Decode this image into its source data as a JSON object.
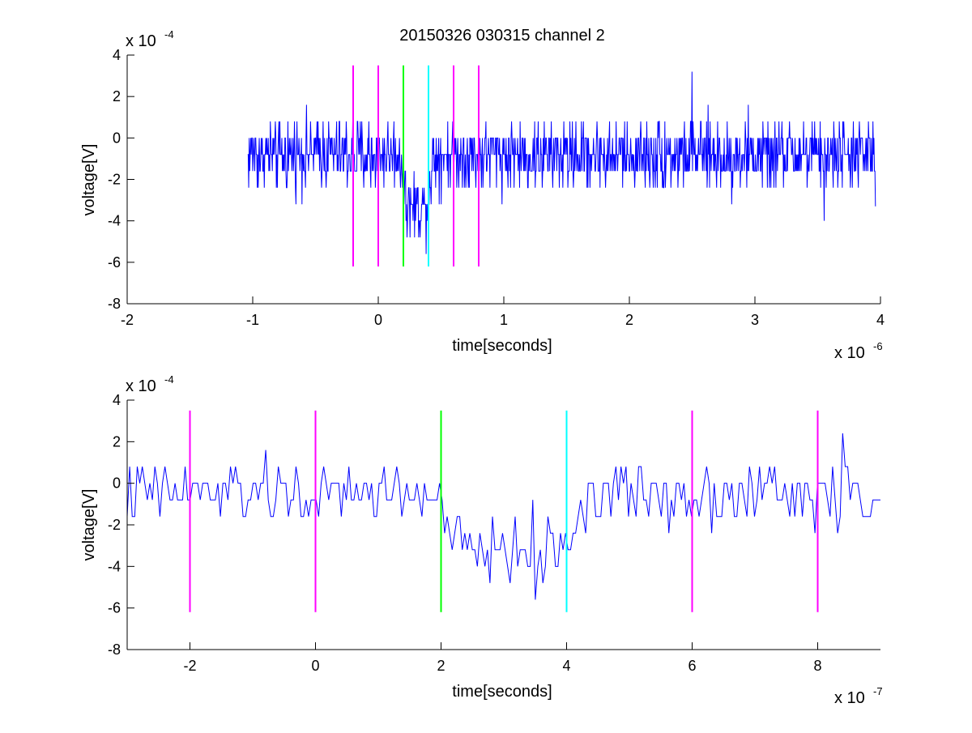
{
  "chart_data": [
    {
      "type": "line",
      "title": "20150326 030315 channel 2",
      "xlabel": "time[seconds]",
      "ylabel": "voltage[V]",
      "xlim": [
        -2e-06,
        4e-06
      ],
      "ylim": [
        -0.0008,
        0.0004
      ],
      "x_ticks": [
        -2e-06,
        -1e-06,
        0,
        1e-06,
        2e-06,
        3e-06,
        4e-06
      ],
      "x_tick_labels": [
        "-2",
        "-1",
        "0",
        "1",
        "2",
        "3",
        "4"
      ],
      "y_ticks": [
        -0.0008,
        -0.0006,
        -0.0004,
        -0.0002,
        0,
        0.0002,
        0.0004
      ],
      "y_tick_labels": [
        "-8",
        "-6",
        "-4",
        "-2",
        "0",
        "2",
        "4"
      ],
      "x_multiplier": {
        "base": "x 10",
        "exponent": "-6"
      },
      "y_multiplier": {
        "base": "x 10",
        "exponent": "-4"
      },
      "grid": false,
      "series": [
        {
          "color": "#0000ff",
          "x_start": -1.04e-06,
          "x_end": 3.96e-06,
          "n_points": 1250,
          "baseline": -8e-05,
          "noise_amplitude": 0.00012,
          "quantization_step": 8e-05,
          "dip": {
            "x_start": 1.8e-07,
            "x_end": 4.4e-07,
            "level": -0.00033
          },
          "peaks": [
            {
              "x": 2.5e-06,
              "y": 0.00032
            },
            {
              "x": 3.55e-06,
              "y": -0.0004
            },
            {
              "x": 3.96e-06,
              "y": -0.00033
            }
          ]
        }
      ],
      "vertical_markers": [
        {
          "x": -2e-07,
          "color": "#ff00ff",
          "y_range": [
            -0.00062,
            0.00035
          ]
        },
        {
          "x": 0,
          "color": "#ff00ff",
          "y_range": [
            -0.00062,
            0.00035
          ]
        },
        {
          "x": 2e-07,
          "color": "#00ff00",
          "y_range": [
            -0.00062,
            0.00035
          ]
        },
        {
          "x": 4e-07,
          "color": "#00ffff",
          "y_range": [
            -0.00062,
            0.00035
          ]
        },
        {
          "x": 6e-07,
          "color": "#ff00ff",
          "y_range": [
            -0.00062,
            0.00035
          ]
        },
        {
          "x": 8e-07,
          "color": "#ff00ff",
          "y_range": [
            -0.00062,
            0.00035
          ]
        }
      ]
    },
    {
      "type": "line",
      "title": "",
      "xlabel": "time[seconds]",
      "ylabel": "voltage[V]",
      "xlim": [
        -3e-07,
        9e-07
      ],
      "ylim": [
        -0.0008,
        0.0004
      ],
      "x_ticks": [
        -2e-07,
        0,
        2e-07,
        4e-07,
        6e-07,
        8e-07
      ],
      "x_tick_labels": [
        "-2",
        "0",
        "2",
        "4",
        "6",
        "8"
      ],
      "y_ticks": [
        -0.0008,
        -0.0006,
        -0.0004,
        -0.0002,
        0,
        0.0002,
        0.0004
      ],
      "y_tick_labels": [
        "-8",
        "-6",
        "-4",
        "-2",
        "0",
        "2",
        "4"
      ],
      "x_multiplier": {
        "base": "x 10",
        "exponent": "-7"
      },
      "y_multiplier": {
        "base": "x 10",
        "exponent": "-4"
      },
      "grid": false,
      "series": [
        {
          "color": "#0000ff",
          "x_start": -3e-07,
          "x_end": 9e-07,
          "n_points": 300,
          "baseline": -5e-05,
          "noise_amplitude": 0.00011,
          "quantization_step": 8e-05,
          "dip": {
            "x_start": 1.8e-07,
            "x_end": 4.4e-07,
            "level": -0.00033
          },
          "peaks": [
            {
              "x": 8.4e-07,
              "y": 0.00024
            },
            {
              "x": 3.5e-07,
              "y": -0.00056
            }
          ]
        }
      ],
      "vertical_markers": [
        {
          "x": -2e-07,
          "color": "#ff00ff",
          "y_range": [
            -0.00062,
            0.00035
          ]
        },
        {
          "x": 0,
          "color": "#ff00ff",
          "y_range": [
            -0.00062,
            0.00035
          ]
        },
        {
          "x": 2e-07,
          "color": "#00ff00",
          "y_range": [
            -0.00062,
            0.00035
          ]
        },
        {
          "x": 4e-07,
          "color": "#00ffff",
          "y_range": [
            -0.00062,
            0.00035
          ]
        },
        {
          "x": 6e-07,
          "color": "#ff00ff",
          "y_range": [
            -0.00062,
            0.00035
          ]
        },
        {
          "x": 8e-07,
          "color": "#ff00ff",
          "y_range": [
            -0.00062,
            0.00035
          ]
        }
      ]
    }
  ]
}
